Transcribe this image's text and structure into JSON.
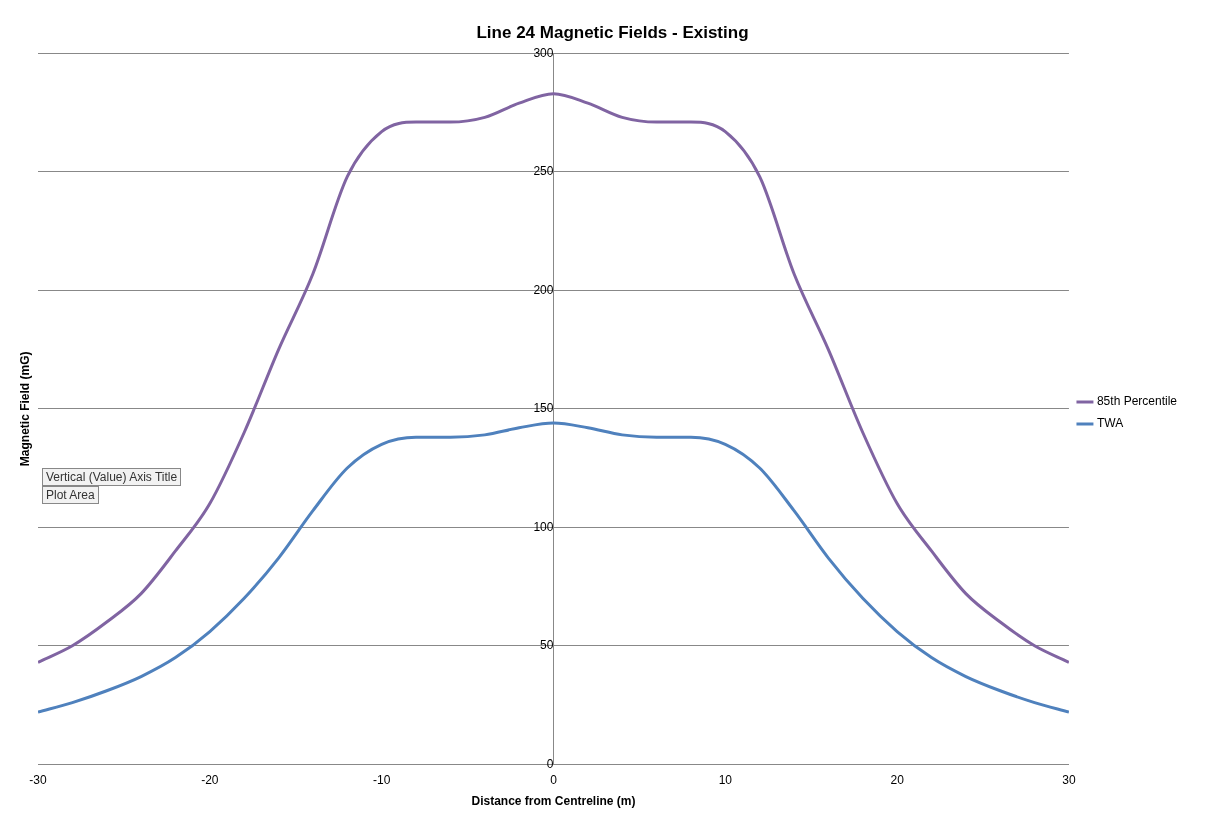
{
  "chart_data": {
    "type": "line",
    "title": "Line 24 Magnetic Fields - Existing",
    "xlabel": "Distance from Centreline (m)",
    "ylabel": "Magnetic Field (mG)",
    "x": [
      -30,
      -28,
      -26,
      -24,
      -22,
      -20,
      -18,
      -16,
      -14,
      -12,
      -10,
      -8,
      -6,
      -4,
      -2,
      0,
      2,
      4,
      6,
      8,
      10,
      12,
      14,
      16,
      18,
      20,
      22,
      24,
      26,
      28,
      30
    ],
    "series": [
      {
        "name": "85th Percentile",
        "color": "#8064a2",
        "values": [
          43,
          50,
          60,
          72,
          90,
          110,
          140,
          175,
          207,
          248,
          267,
          271,
          271,
          273,
          279,
          283,
          279,
          273,
          271,
          271,
          267,
          248,
          207,
          175,
          140,
          110,
          90,
          72,
          60,
          50,
          43
        ]
      },
      {
        "name": "TWA",
        "color": "#4f81bd",
        "values": [
          22,
          26,
          31,
          37,
          45,
          56,
          70,
          87,
          107,
          125,
          135,
          138,
          138,
          139,
          142,
          144,
          142,
          139,
          138,
          138,
          135,
          125,
          107,
          87,
          70,
          56,
          45,
          37,
          31,
          26,
          22
        ]
      }
    ],
    "xlim": [
      -30,
      30
    ],
    "xticks": [
      -30,
      -20,
      -10,
      0,
      10,
      20,
      30
    ],
    "ylim": [
      0,
      300
    ],
    "yticks": [
      0,
      50,
      100,
      150,
      200,
      250,
      300
    ],
    "grid": "y",
    "legend": "right",
    "marker": "none",
    "line_style": "solid",
    "annotations": [
      "Vertical (Value) Axis Title",
      "Plot Area"
    ]
  }
}
